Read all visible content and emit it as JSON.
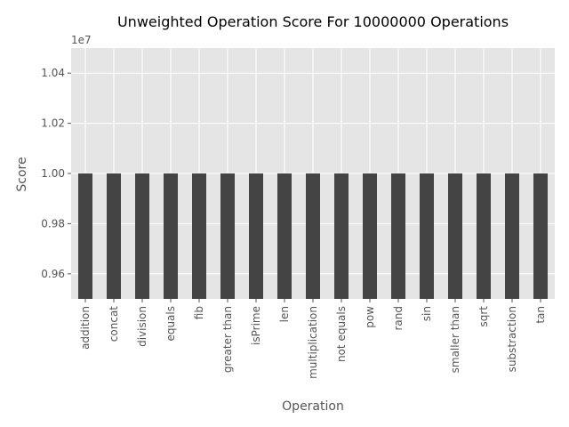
{
  "chart_data": {
    "type": "bar",
    "title": "Unweighted Operation Score For 10000000 Operations",
    "xlabel": "Operation",
    "ylabel": "Score",
    "offset_label": "1e7",
    "categories": [
      "addition",
      "concat",
      "division",
      "equals",
      "fib",
      "greater than",
      "isPrime",
      "len",
      "multiplication",
      "not equals",
      "pow",
      "rand",
      "sin",
      "smaller than",
      "sqrt",
      "substraction",
      "tan"
    ],
    "values": [
      10000000,
      10000000,
      10000000,
      10000000,
      10000000,
      10000000,
      10000000,
      10000000,
      10000000,
      10000000,
      10000000,
      10000000,
      10000000,
      10000000,
      10000000,
      10000000,
      10000000
    ],
    "ylim": [
      9500000,
      10500000
    ],
    "yticks": [
      9600000,
      9800000,
      10000000,
      10200000,
      10400000
    ],
    "ytick_labels": [
      "0.96",
      "0.98",
      "1.00",
      "1.02",
      "1.04"
    ],
    "grid": true,
    "colors": {
      "bar": "#444444",
      "plot_bg": "#e5e5e5",
      "grid": "#ffffff"
    }
  }
}
